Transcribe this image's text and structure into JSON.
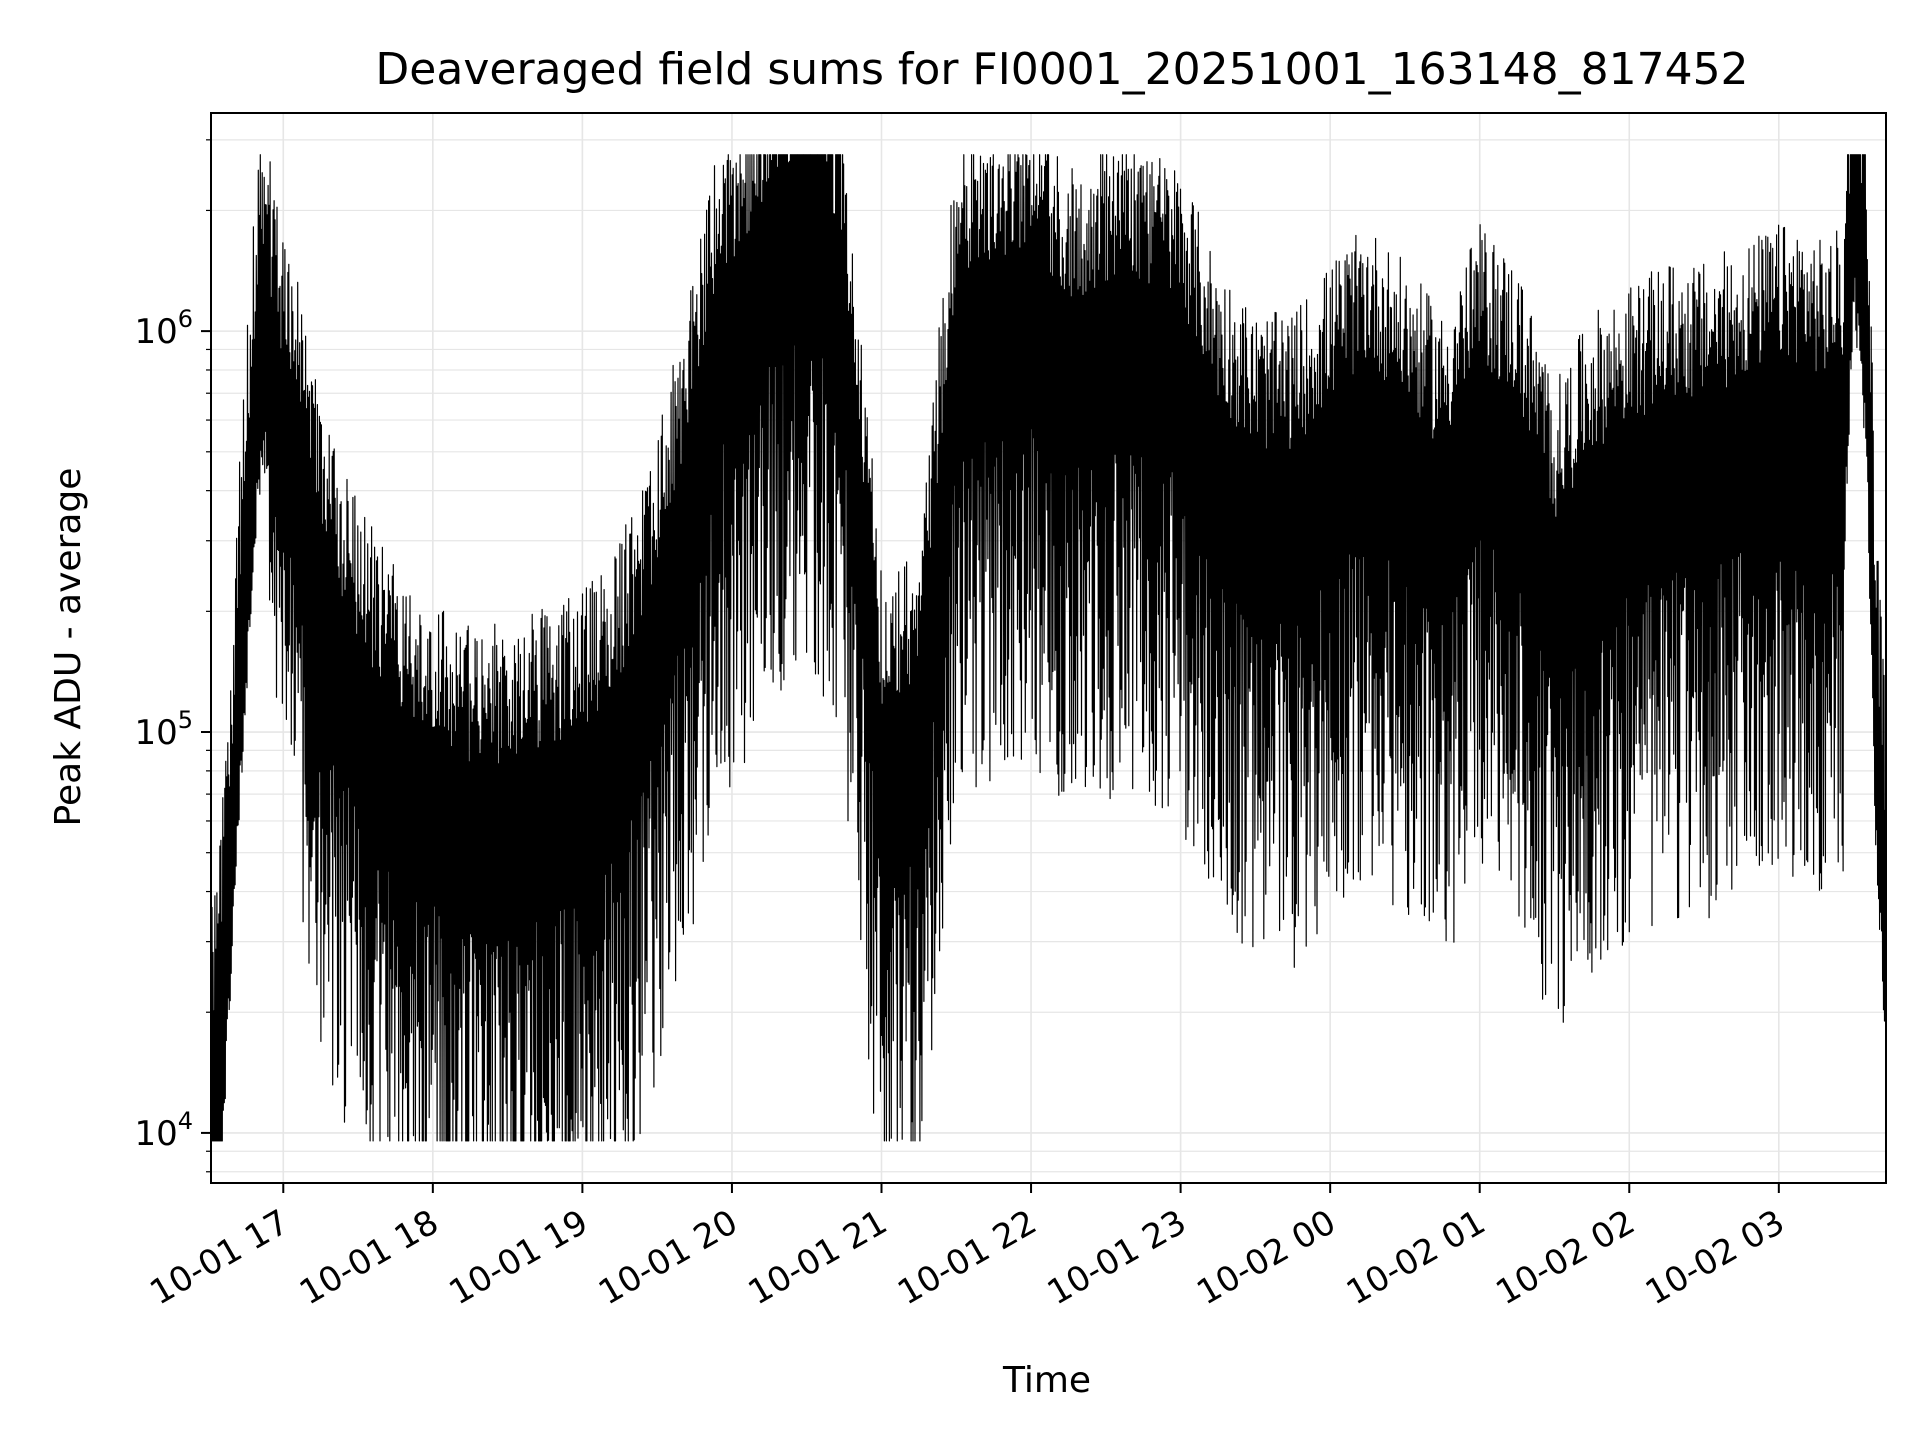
{
  "chart_data": {
    "type": "line",
    "title": "Deaveraged field sums for FI0001_20251001_163148_817452",
    "xlabel": "Time",
    "ylabel": "Peak ADU - average",
    "yscale": "log",
    "ylim": [
      7500,
      3500000
    ],
    "xlim": [
      "2025-10-01 16:31",
      "2025-10-02 03:43"
    ],
    "grid": true,
    "line_color": "#000000",
    "x_ticks": [
      {
        "time": "2025-10-01 17:00",
        "label": "10-01 17"
      },
      {
        "time": "2025-10-01 18:00",
        "label": "10-01 18"
      },
      {
        "time": "2025-10-01 19:00",
        "label": "10-01 19"
      },
      {
        "time": "2025-10-01 20:00",
        "label": "10-01 20"
      },
      {
        "time": "2025-10-01 21:00",
        "label": "10-01 21"
      },
      {
        "time": "2025-10-01 22:00",
        "label": "10-01 22"
      },
      {
        "time": "2025-10-01 23:00",
        "label": "10-01 23"
      },
      {
        "time": "2025-10-02 00:00",
        "label": "10-02 00"
      },
      {
        "time": "2025-10-02 01:00",
        "label": "10-02 01"
      },
      {
        "time": "2025-10-02 02:00",
        "label": "10-02 02"
      },
      {
        "time": "2025-10-02 03:00",
        "label": "10-02 03"
      }
    ],
    "y_ticks": [
      {
        "value": 10000,
        "base": "10",
        "exp": "4"
      },
      {
        "value": 100000,
        "base": "10",
        "exp": "5"
      },
      {
        "value": 1000000,
        "base": "10",
        "exp": "6"
      }
    ],
    "series": [
      {
        "x": [
          "2025-10-01 16:31",
          "2025-10-01 16:33",
          "2025-10-01 16:35",
          "2025-10-01 16:37",
          "2025-10-01 16:40",
          "2025-10-01 16:43",
          "2025-10-01 16:47",
          "2025-10-01 16:50",
          "2025-10-01 16:53",
          "2025-10-01 16:56",
          "2025-10-01 17:00",
          "2025-10-01 17:05",
          "2025-10-01 17:10",
          "2025-10-01 17:15",
          "2025-10-01 17:20",
          "2025-10-01 17:30",
          "2025-10-01 17:45",
          "2025-10-01 18:00",
          "2025-10-01 18:15",
          "2025-10-01 18:30",
          "2025-10-01 18:45",
          "2025-10-01 19:00",
          "2025-10-01 19:15",
          "2025-10-01 19:30",
          "2025-10-01 19:45",
          "2025-10-01 19:55",
          "2025-10-01 20:05",
          "2025-10-01 20:20",
          "2025-10-01 20:30",
          "2025-10-01 20:37",
          "2025-10-01 20:45",
          "2025-10-01 21:00",
          "2025-10-01 21:15",
          "2025-10-01 21:30",
          "2025-10-01 21:45",
          "2025-10-01 22:00",
          "2025-10-01 22:15",
          "2025-10-01 22:30",
          "2025-10-01 22:45",
          "2025-10-01 23:00",
          "2025-10-01 23:15",
          "2025-10-01 23:30",
          "2025-10-01 23:45",
          "2025-10-02 00:00",
          "2025-10-02 00:15",
          "2025-10-02 00:30",
          "2025-10-02 00:45",
          "2025-10-02 01:00",
          "2025-10-02 01:15",
          "2025-10-02 01:30",
          "2025-10-02 01:45",
          "2025-10-02 02:00",
          "2025-10-02 02:15",
          "2025-10-02 02:30",
          "2025-10-02 02:45",
          "2025-10-02 03:00",
          "2025-10-02 03:10",
          "2025-10-02 03:18",
          "2025-10-02 03:26",
          "2025-10-02 03:30",
          "2025-10-02 03:35",
          "2025-10-02 03:39",
          "2025-10-02 03:43"
        ],
        "y": [
          10000,
          13000,
          15000,
          28000,
          60000,
          150000,
          400000,
          800000,
          900000,
          600000,
          500000,
          400000,
          250000,
          180000,
          150000,
          100000,
          70000,
          60000,
          50000,
          50000,
          55000,
          60000,
          80000,
          150000,
          400000,
          800000,
          1000000,
          1500000,
          1800000,
          1400000,
          900000,
          70000,
          80000,
          800000,
          900000,
          1000000,
          700000,
          800000,
          800000,
          700000,
          400000,
          300000,
          300000,
          400000,
          500000,
          400000,
          300000,
          500000,
          400000,
          200000,
          300000,
          350000,
          400000,
          400000,
          450000,
          500000,
          500000,
          450000,
          500000,
          2400000,
          1000000,
          100000,
          30000
        ]
      }
    ]
  }
}
